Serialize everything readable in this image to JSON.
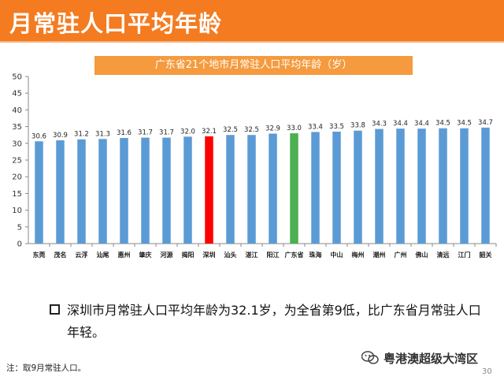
{
  "header": {
    "title": "月常驻人口平均年龄"
  },
  "chart_data": {
    "type": "bar",
    "title": "广东省21个地市月常驻人口平均年龄（岁）",
    "categories": [
      "东莞",
      "茂名",
      "云浮",
      "汕尾",
      "惠州",
      "肇庆",
      "河源",
      "揭阳",
      "深圳",
      "汕头",
      "湛江",
      "阳江",
      "广东省",
      "珠海",
      "中山",
      "梅州",
      "潮州",
      "广州",
      "佛山",
      "清远",
      "江门",
      "韶关"
    ],
    "values": [
      30.6,
      30.9,
      31.2,
      31.3,
      31.6,
      31.7,
      31.7,
      32.0,
      32.1,
      32.5,
      32.5,
      32.9,
      33.0,
      33.4,
      33.5,
      33.8,
      34.3,
      34.4,
      34.4,
      34.5,
      34.5,
      34.7
    ],
    "value_labels": [
      "30.6",
      "30.9",
      "31.2",
      "31.3",
      "31.6",
      "31.7",
      "31.7",
      "32.0",
      "32.1",
      "32.5",
      "32.5",
      "32.9",
      "33.0",
      "33.4",
      "33.5",
      "33.8",
      "34.3",
      "34.4",
      "34.4",
      "34.5",
      "34.5",
      "34.7"
    ],
    "ylim": [
      0,
      50
    ],
    "yticks": [
      "0",
      "5",
      "10",
      "15",
      "20",
      "25",
      "30",
      "35",
      "40",
      "45",
      "50"
    ],
    "colors": {
      "default": "#5b9bd5",
      "highlight": "#ff0000",
      "province": "#4caf50",
      "highlight_label": "#c0392b"
    },
    "highlight_category": "深圳",
    "province_category": "广东省"
  },
  "bullet": {
    "text": "深圳市月常驻人口平均年龄为32.1岁，为全省第9低，比广东省月常驻人口年轻。"
  },
  "note": "注：取9月常驻人口。",
  "watermark": "粤港澳超级大湾区",
  "page_number": "30"
}
